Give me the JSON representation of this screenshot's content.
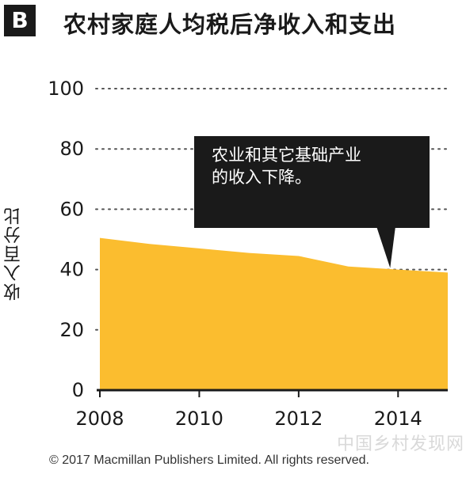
{
  "panel_letter": "B",
  "title": "农村家庭人均税后净收入和支出",
  "watermark": "中国乡村发现网",
  "copyright": "© 2017 Macmillan Publishers Limited. All rights reserved.",
  "colors": {
    "area": "#FBBD2F",
    "text": "#1a1a1a",
    "callout_bg": "#1a1a1a",
    "grid": "#555555"
  },
  "chart_data": {
    "type": "area",
    "title": "农村家庭人均税后净收入和支出",
    "ylabel": "收入百分比",
    "xlabel": "",
    "x": [
      2008,
      2009,
      2010,
      2011,
      2012,
      2013,
      2014,
      2015
    ],
    "series": [
      {
        "values": [
          50.5,
          48.5,
          47,
          45.5,
          44.5,
          41,
          40,
          39
        ]
      }
    ],
    "xlim": [
      2008,
      2015
    ],
    "ylim": [
      0,
      100
    ],
    "yticks": [
      0,
      20,
      40,
      60,
      80,
      100
    ],
    "xticks": [
      2008,
      2010,
      2012,
      2014
    ],
    "grid": "horizontal-dotted",
    "annotation": {
      "lines": [
        "农业和其它基础产业",
        "的收入下降。"
      ],
      "x": 2014,
      "y": 40
    }
  }
}
